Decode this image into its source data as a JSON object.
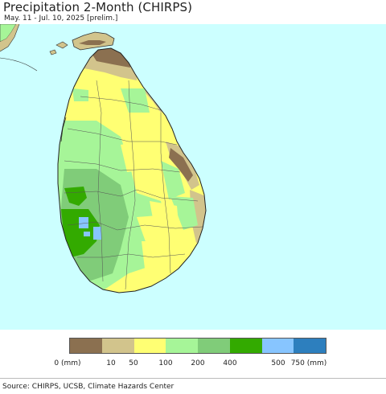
{
  "title": "Precipitation 2-Month (CHIRPS)",
  "subtitle": "May. 11 - Jul. 10, 2025 [prelim.]",
  "source": "Source: CHIRPS, UCSB, Climate Hazards Center",
  "legend": {
    "labels": [
      "0 (mm)",
      "10",
      "50",
      "100",
      "200",
      "400",
      "500",
      "750 (mm)"
    ],
    "bins": [
      {
        "color": "#8b7050"
      },
      {
        "color": "#d2c48c"
      },
      {
        "color": "#ffff73"
      },
      {
        "color": "#a6f598"
      },
      {
        "color": "#80cc79"
      },
      {
        "color": "#33aa00"
      },
      {
        "color": "#87c5ff"
      },
      {
        "color": "#2d7fbe"
      }
    ]
  },
  "colors": {
    "ocean": "#ccffff",
    "border": "#333333"
  }
}
